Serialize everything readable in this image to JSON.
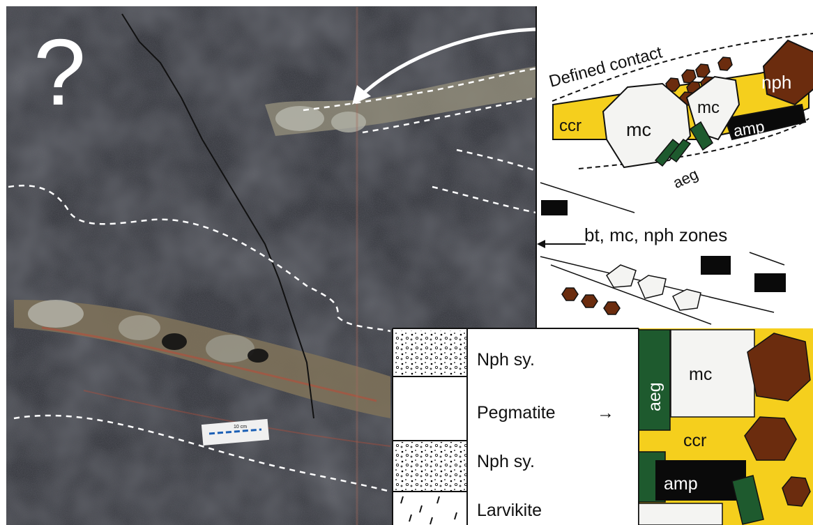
{
  "photo": {
    "question_mark": "?",
    "scale_bar_label": "10 cm"
  },
  "sketch": {
    "contact_label": "Defined contact",
    "minerals": {
      "nph": "nph",
      "mc": "mc",
      "mc_small": "mc",
      "ccr": "ccr",
      "amp": "amp",
      "aeg": "aeg"
    },
    "zones_label": "bt, mc, nph zones"
  },
  "column": {
    "units": [
      "Nph sy.",
      "Pegmatite",
      "Nph sy.",
      "Larvikite"
    ],
    "pegmatite_arrow": "→"
  },
  "detail": {
    "aeg": "aeg",
    "mc": "mc",
    "ccr": "ccr",
    "amp": "amp"
  },
  "colors": {
    "ccr_yellow": "#f5cf1d",
    "nph_brown": "#6b2c0e",
    "aeg_green": "#1e5a2e",
    "amp_black": "#0a0a0a",
    "mc_white": "#f4f4f2",
    "rock_dark": "#3a3c42",
    "vein_tan": "#9d8d6a"
  }
}
